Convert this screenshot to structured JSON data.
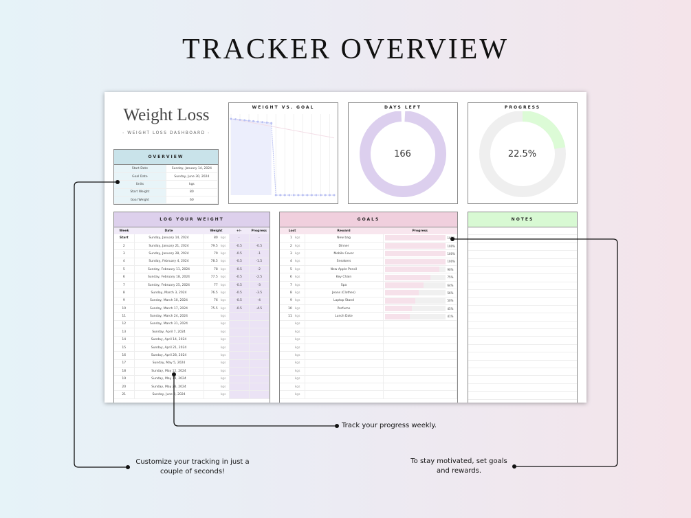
{
  "page_title": "TRACKER OVERVIEW",
  "dashboard": {
    "title": "Weight Loss",
    "subtitle": "- WEIGHT LOSS DASHBOARD -"
  },
  "overview": {
    "header": "OVERVIEW",
    "rows": [
      [
        "Start Date",
        "Sunday, January 14, 2024"
      ],
      [
        "Goal Date",
        "Sunday, June 30, 2024"
      ],
      [
        "Units",
        "kgs"
      ],
      [
        "Start Weight",
        "80"
      ],
      [
        "Goal Weight",
        "60"
      ]
    ]
  },
  "chart_data": {
    "type": "line",
    "title": "WEIGHT VS. GOAL",
    "series": [
      {
        "values": [
          80,
          79.5,
          79,
          78.5,
          78,
          77.5,
          77,
          76.5,
          76,
          75.5,
          0,
          0,
          0,
          0,
          0,
          0,
          0,
          0,
          0,
          0,
          0,
          0,
          0,
          0
        ],
        "color": "#b9c0f2",
        "fill": "#eceefc"
      },
      {
        "values": [
          80,
          79.13,
          78.26,
          77.39,
          76.52,
          75.65,
          74.78,
          73.91,
          73.04,
          72.17,
          71.3,
          70.43,
          69.57,
          68.7,
          67.83,
          66.96,
          66.09,
          65.22,
          64.35,
          63.48,
          62.61,
          61.74,
          60.87,
          60
        ],
        "color": "#f3dde6"
      }
    ],
    "ylim": [
      0,
      85
    ]
  },
  "days_left": {
    "title": "DAYS LEFT",
    "value": "166",
    "color": "#dccfee"
  },
  "progress": {
    "title": "PROGRESS",
    "value": "22.5%",
    "fraction": 0.225,
    "color": "#dcfbd6",
    "track": "#efefef"
  },
  "log": {
    "header": "LOG YOUR WEIGHT",
    "columns": [
      "Week",
      "Date",
      "Weight",
      "+/-",
      "Progress"
    ],
    "unit": "kgs",
    "rows": [
      [
        "Start",
        "Sunday, January 14, 2024",
        "80",
        "-",
        "-"
      ],
      [
        "2",
        "Sunday, January 21, 2024",
        "79.5",
        "-0.5",
        "-0.5"
      ],
      [
        "3",
        "Sunday, January 28, 2024",
        "79",
        "-0.5",
        "-1"
      ],
      [
        "4",
        "Sunday, February 4, 2024",
        "78.5",
        "-0.5",
        "-1.5"
      ],
      [
        "5",
        "Sunday, February 11, 2024",
        "78",
        "-0.5",
        "-2"
      ],
      [
        "6",
        "Sunday, February 18, 2024",
        "77.5",
        "-0.5",
        "-2.5"
      ],
      [
        "7",
        "Sunday, February 25, 2024",
        "77",
        "-0.5",
        "-3"
      ],
      [
        "8",
        "Sunday, March 3, 2024",
        "76.5",
        "-0.5",
        "-3.5"
      ],
      [
        "9",
        "Sunday, March 10, 2024",
        "76",
        "-0.5",
        "-4"
      ],
      [
        "10",
        "Sunday, March 17, 2024",
        "75.5",
        "-0.5",
        "-4.5"
      ],
      [
        "11",
        "Sunday, March 24, 2024",
        "",
        "",
        ""
      ],
      [
        "12",
        "Sunday, March 31, 2024",
        "",
        "",
        ""
      ],
      [
        "13",
        "Sunday, April 7, 2024",
        "",
        "",
        ""
      ],
      [
        "14",
        "Sunday, April 14, 2024",
        "",
        "",
        ""
      ],
      [
        "15",
        "Sunday, April 21, 2024",
        "",
        "",
        ""
      ],
      [
        "16",
        "Sunday, April 28, 2024",
        "",
        "",
        ""
      ],
      [
        "17",
        "Sunday, May 5, 2024",
        "",
        "",
        ""
      ],
      [
        "18",
        "Sunday, May 12, 2024",
        "",
        "",
        ""
      ],
      [
        "19",
        "Sunday, May 19, 2024",
        "",
        "",
        ""
      ],
      [
        "20",
        "Sunday, May 26, 2024",
        "",
        "",
        ""
      ],
      [
        "21",
        "Sunday, June 2, 2024",
        "",
        "",
        ""
      ]
    ]
  },
  "goals": {
    "header": "GOALS",
    "columns": [
      "Lost",
      "Reward",
      "Progress"
    ],
    "unit": "kgs",
    "rows": [
      [
        "1",
        "New bag",
        100
      ],
      [
        "2",
        "Dinner",
        100
      ],
      [
        "3",
        "Mobile Cover",
        100
      ],
      [
        "4",
        "Sneakers",
        100
      ],
      [
        "5",
        "New Apple Pencil",
        90
      ],
      [
        "6",
        "Key Chain",
        75
      ],
      [
        "7",
        "Spa",
        64
      ],
      [
        "8",
        "Jeans (Clothes)",
        56
      ],
      [
        "9",
        "Laptop Stand",
        50
      ],
      [
        "10",
        "Perfume",
        45
      ],
      [
        "11",
        "Lunch Date",
        41
      ],
      [
        "",
        "",
        null
      ],
      [
        "",
        "",
        null
      ],
      [
        "",
        "",
        null
      ],
      [
        "",
        "",
        null
      ],
      [
        "",
        "",
        null
      ],
      [
        "",
        "",
        null
      ],
      [
        "",
        "",
        null
      ],
      [
        "",
        "",
        null
      ],
      [
        "",
        "",
        null
      ],
      [
        "",
        "",
        null
      ]
    ]
  },
  "notes": {
    "header": "NOTES"
  },
  "colors": {
    "overview": "#c9e3ea",
    "log": "#ddd0ec",
    "goals": "#f0cfdd",
    "notes": "#d8f9d3"
  },
  "callouts": {
    "customize": "Customize your tracking in just a couple of seconds!",
    "track": "Track your progress weekly.",
    "motivate": "To stay motivated, set goals and rewards."
  }
}
